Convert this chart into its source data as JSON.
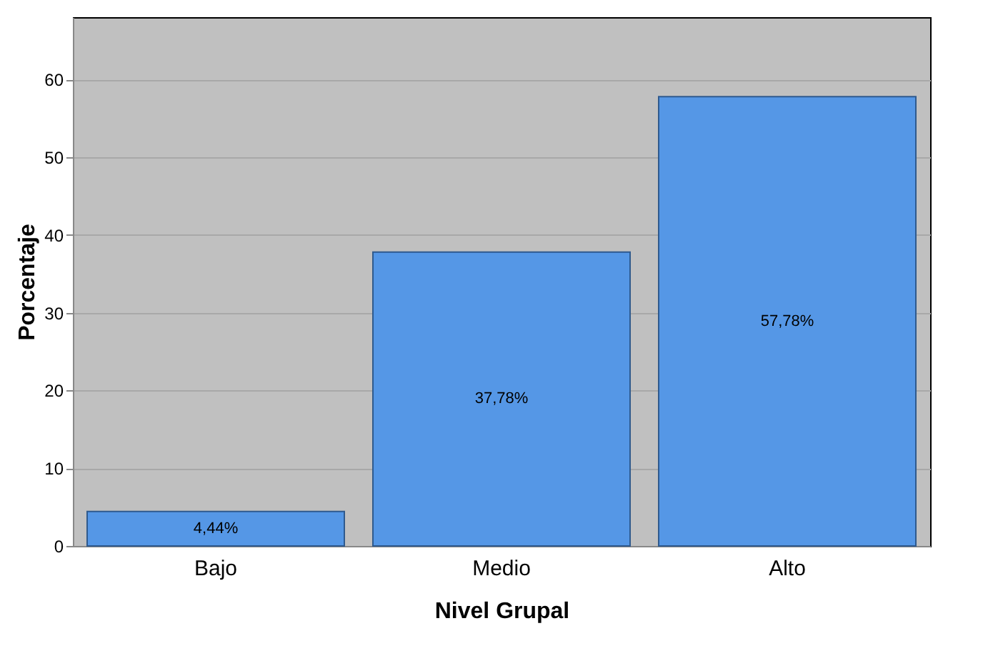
{
  "chart_data": {
    "type": "bar",
    "xlabel": "Nivel Grupal",
    "ylabel": "Porcentaje",
    "categories": [
      "Bajo",
      "Medio",
      "Alto"
    ],
    "values": [
      4.44,
      37.78,
      57.78
    ],
    "value_labels": [
      "4,44%",
      "37,78%",
      "57,78%"
    ],
    "color": "#5597e6",
    "ylim": [
      0,
      68
    ],
    "yticks": [
      0,
      10,
      20,
      30,
      40,
      50,
      60
    ],
    "grid": "y"
  }
}
